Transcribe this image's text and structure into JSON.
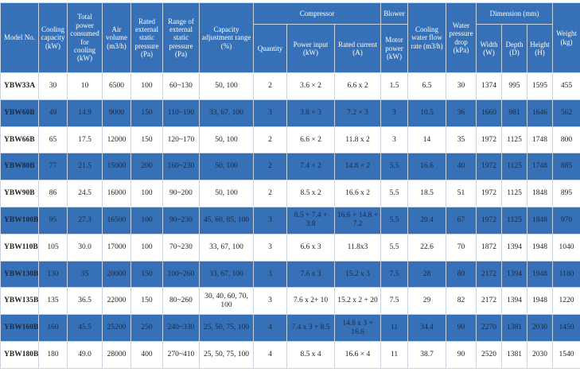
{
  "table": {
    "columns": [
      {
        "label": "Model No."
      },
      {
        "label": "Cooling capacity (kW)"
      },
      {
        "label": "Total power consumed for cooling (kW)"
      },
      {
        "label": "Air volume (m3/h)"
      },
      {
        "label": "Rated external static pressure (Pa)"
      },
      {
        "label": "Range of external static pressure (Pa)"
      },
      {
        "label": "Capacity adjustment range (%)"
      },
      {
        "label": "Compressor",
        "sub": [
          "Quantity",
          "Power input (kW)",
          "Rated current (A)"
        ]
      },
      {
        "label": "Blower",
        "sub": [
          "Motor power (kW)"
        ]
      },
      {
        "label": "Cooling water flow rate (m3/h)"
      },
      {
        "label": "Water pressure drop (kPa)"
      },
      {
        "label": "Dimension (mm)",
        "sub": [
          "Width (W)",
          "Depth (D)",
          "Height (H)"
        ]
      },
      {
        "label": "Weight (kg)"
      }
    ],
    "rows": [
      [
        "YBW33A",
        "30",
        "10",
        "6500",
        "100",
        "60~130",
        "50, 100",
        "2",
        "3.6 × 2",
        "6.6 x 2",
        "1.5",
        "6.5",
        "30",
        "1374",
        "995",
        "1595",
        "455"
      ],
      [
        "YBW60B",
        "49",
        "14.9",
        "9000",
        "150",
        "110~190",
        "33, 67, 100",
        "3",
        "3.8 × 3",
        "7.2 × 3",
        "3",
        "10.5",
        "36",
        "1660",
        "981",
        "1646",
        "562"
      ],
      [
        "YBW66B",
        "65",
        "17.5",
        "12000",
        "150",
        "120~170",
        "50, 100",
        "2",
        "6.6 × 2",
        "11.8 x 2",
        "3",
        "14",
        "35",
        "1972",
        "1125",
        "1748",
        "800"
      ],
      [
        "YBW80B",
        "77",
        "21.5",
        "15000",
        "200",
        "160~230",
        "50, 100",
        "2",
        "7.4 × 2",
        "14.8 × 2",
        "5.5",
        "16.6",
        "40",
        "1972",
        "1125",
        "1748",
        "885"
      ],
      [
        "YBW90B",
        "86",
        "24.5",
        "16000",
        "100",
        "90~200",
        "50, 100",
        "2",
        "8.5 x 2",
        "16.6 x 2",
        "5.5",
        "18.5",
        "51",
        "1972",
        "1125",
        "1848",
        "895"
      ],
      [
        "YBW100B",
        "95",
        "27.3",
        "16500",
        "100",
        "90~230",
        "45, 60, 85, 100",
        "3",
        "8.5 + 7.4 + 3.8",
        "16.6 + 14.8 + 7.2",
        "5.5",
        "20.4",
        "67",
        "1972",
        "1125",
        "1848",
        "970"
      ],
      [
        "YBW110B",
        "105",
        "30.0",
        "17000",
        "100",
        "70~230",
        "33, 67, 100",
        "3",
        "6.6 x 3",
        "11.8x3",
        "5.5",
        "22.6",
        "70",
        "1872",
        "1394",
        "1948",
        "1040"
      ],
      [
        "YBW130B",
        "130",
        "35",
        "20000",
        "150",
        "100~260",
        "33, 67, 100",
        "3",
        "7.6 x 3",
        "15.2 x 3",
        "7.5",
        "28",
        "80",
        "2172",
        "1394",
        "1948",
        "1180"
      ],
      [
        "YBW135B",
        "135",
        "36.5",
        "22000",
        "150",
        "80~260",
        "30, 40, 60, 70, 100",
        "3",
        "7.6 x 2+ 10",
        "15.2 x 2 + 20",
        "7.5",
        "29",
        "82",
        "2172",
        "1394",
        "1948",
        "1220"
      ],
      [
        "YBW160B",
        "160",
        "45.5",
        "25200",
        "250",
        "240~330",
        "25, 50, 75, 100",
        "4",
        "7.4 x 3 + 8.5",
        "14.8 x 3 + 16.6",
        "11",
        "34.4",
        "90",
        "2270",
        "1381",
        "2030",
        "1450"
      ],
      [
        "YBW180B",
        "180",
        "49.0",
        "28000",
        "400",
        "270~410",
        "25, 50, 75, 100",
        "4",
        "8.5 x 4",
        "16.6 × 4",
        "11",
        "38.7",
        "90",
        "2520",
        "1381",
        "2030",
        "1540"
      ]
    ]
  }
}
